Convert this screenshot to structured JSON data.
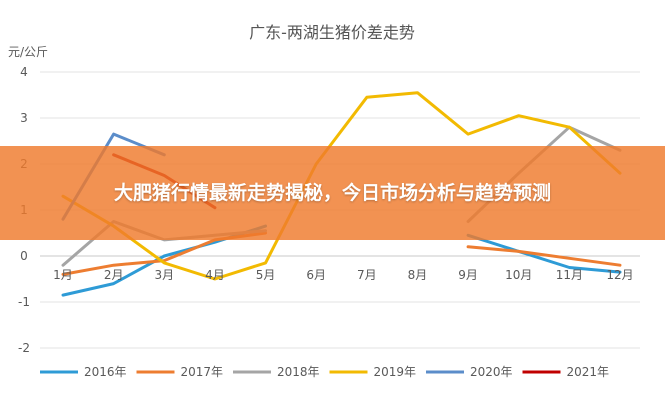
{
  "headline": "大肥猪行情最新走势揭秘，今日市场分析与趋势预测",
  "chart_data": {
    "type": "line",
    "title": "广东-两湖生猪价差走势",
    "ylabel": "元/公斤",
    "xlabel": "",
    "categories": [
      "1月",
      "2月",
      "3月",
      "4月",
      "5月",
      "6月",
      "7月",
      "8月",
      "9月",
      "10月",
      "11月",
      "12月"
    ],
    "ylim": [
      -2,
      4
    ],
    "yticks": [
      "-2",
      "-1",
      "0",
      "1",
      "2",
      "3",
      "4"
    ],
    "grid": true,
    "legend_position": "bottom",
    "series": [
      {
        "name": "2016年",
        "color": "#2E9BD6",
        "values": [
          -0.85,
          -0.6,
          0.0,
          0.3,
          0.65,
          null,
          null,
          null,
          0.45,
          0.1,
          -0.25,
          -0.35
        ]
      },
      {
        "name": "2017年",
        "color": "#ED7D31",
        "values": [
          -0.4,
          -0.2,
          -0.1,
          0.35,
          0.5,
          null,
          null,
          null,
          0.2,
          0.1,
          -0.05,
          -0.2
        ]
      },
      {
        "name": "2018年",
        "color": "#A5A5A5",
        "values": [
          -0.2,
          0.75,
          0.35,
          0.45,
          0.55,
          null,
          null,
          null,
          0.75,
          1.8,
          2.8,
          2.3
        ]
      },
      {
        "name": "2019年",
        "color": "#F2BA02",
        "values": [
          1.3,
          0.65,
          -0.15,
          -0.5,
          -0.15,
          2.0,
          3.45,
          3.55,
          2.65,
          3.05,
          2.8,
          1.8
        ]
      },
      {
        "name": "2020年",
        "color": "#5B8DCA",
        "values": [
          0.8,
          2.65,
          2.2,
          null,
          null,
          null,
          null,
          null,
          null,
          null,
          null,
          null
        ]
      },
      {
        "name": "2021年",
        "color": "#C00000",
        "values": [
          null,
          2.2,
          1.75,
          1.05,
          null,
          null,
          null,
          null,
          null,
          null,
          null,
          null
        ]
      }
    ]
  }
}
